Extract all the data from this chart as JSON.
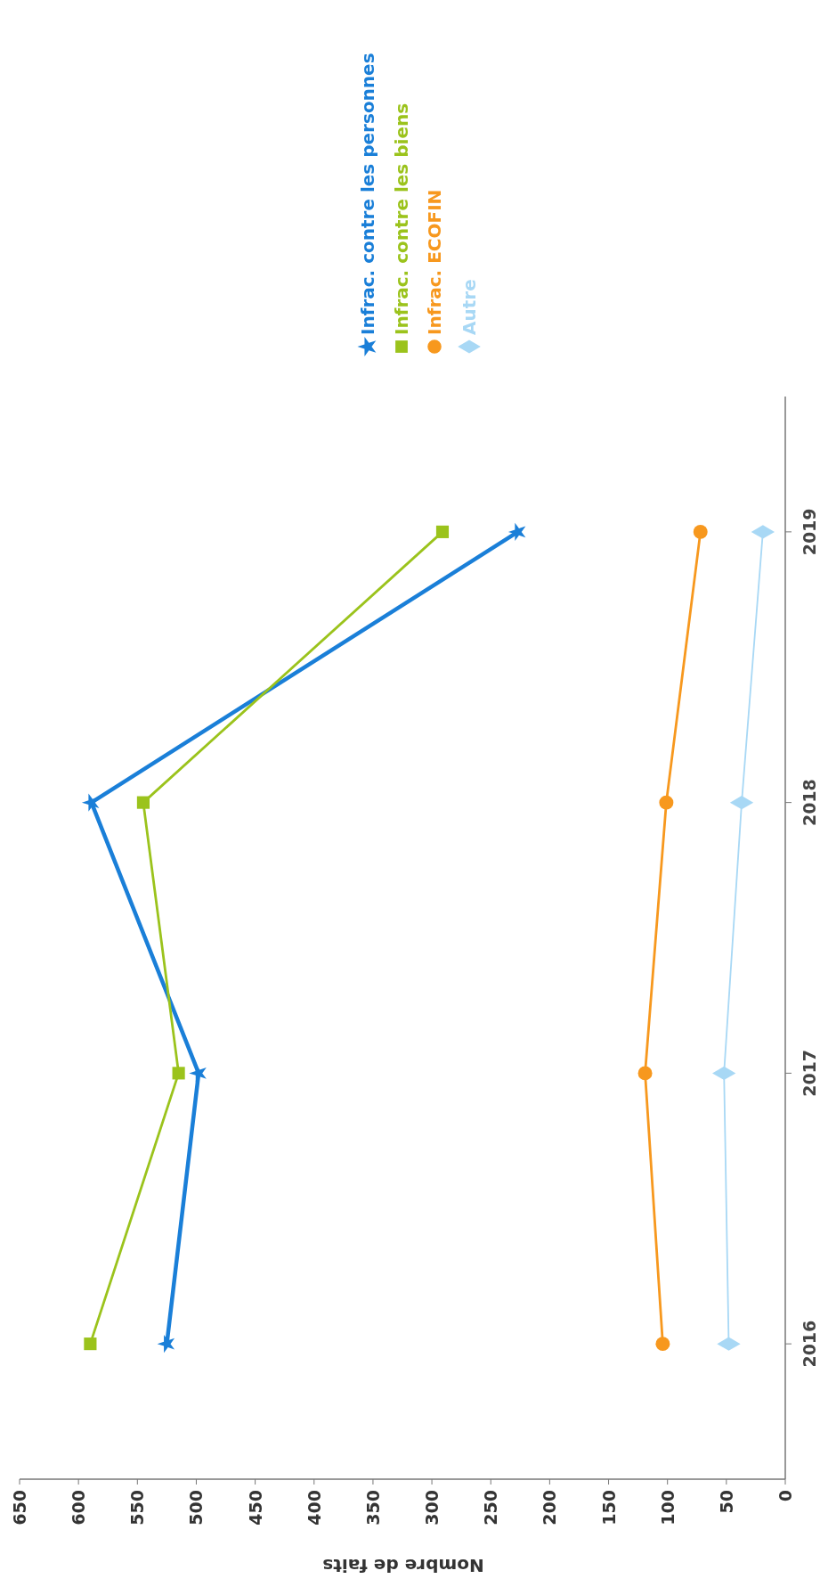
{
  "chart_data": {
    "type": "line",
    "orientation": "horizontal",
    "xlabel": "Nombre de faits",
    "categories": [
      "2019",
      "2018",
      "2017",
      "2016"
    ],
    "xlim": [
      650,
      0
    ],
    "xticks": [
      650,
      600,
      550,
      500,
      450,
      400,
      350,
      300,
      250,
      200,
      150,
      100,
      50,
      0
    ],
    "grid": false,
    "legend": "top",
    "series": [
      {
        "name": "Infrac. contre les personnes",
        "color": "#1a7fd8",
        "marker": "star",
        "values": [
          227,
          589,
          498,
          525
        ]
      },
      {
        "name": "Infrac. contre les biens",
        "color": "#9bc31c",
        "marker": "square",
        "values": [
          291,
          545,
          515,
          590
        ]
      },
      {
        "name": "Infrac. ECOFIN",
        "color": "#f7981e",
        "marker": "circle",
        "values": [
          72,
          101,
          119,
          104
        ]
      },
      {
        "name": "Autre",
        "color": "#a8d8f5",
        "marker": "diamond",
        "values": [
          19,
          37,
          52,
          48
        ]
      }
    ]
  }
}
